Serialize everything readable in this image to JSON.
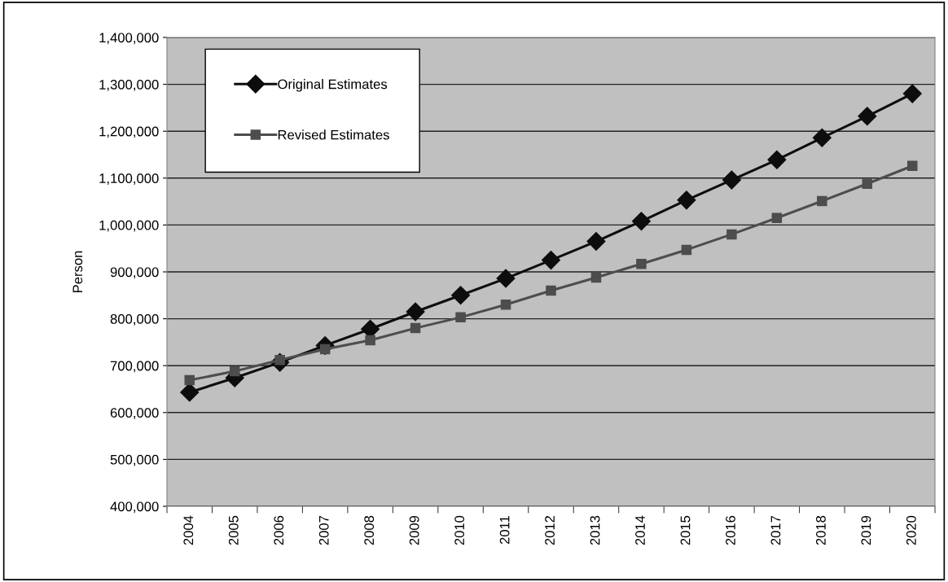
{
  "chart_data": {
    "type": "line",
    "ylabel": "Person",
    "categories": [
      "2004",
      "2005",
      "2006",
      "2007",
      "2008",
      "2009",
      "2010",
      "2011",
      "2012",
      "2013",
      "2014",
      "2015",
      "2016",
      "2017",
      "2018",
      "2019",
      "2020"
    ],
    "series": [
      {
        "name": "Original Estimates",
        "color": "#0d0d0d",
        "marker": "diamond",
        "values": [
          643000,
          674000,
          707000,
          743000,
          778000,
          815000,
          850000,
          886000,
          925000,
          965000,
          1008000,
          1053000,
          1096000,
          1139000,
          1186000,
          1232000,
          1280000
        ]
      },
      {
        "name": "Revised Estimates",
        "color": "#4d4d4d",
        "marker": "square",
        "values": [
          669000,
          688000,
          712000,
          735000,
          754000,
          780000,
          803000,
          830000,
          860000,
          888000,
          917000,
          947000,
          980000,
          1015000,
          1051000,
          1088000,
          1126000
        ]
      }
    ],
    "ylim": [
      400000,
      1400000
    ],
    "yticks": [
      {
        "value": 400000,
        "label": "400,000"
      },
      {
        "value": 500000,
        "label": "500,000"
      },
      {
        "value": 600000,
        "label": "600,000"
      },
      {
        "value": 700000,
        "label": "700,000"
      },
      {
        "value": 800000,
        "label": "800,000"
      },
      {
        "value": 900000,
        "label": "900,000"
      },
      {
        "value": 1000000,
        "label": "1,000,000"
      },
      {
        "value": 1100000,
        "label": "1,100,000"
      },
      {
        "value": 1200000,
        "label": "1,200,000"
      },
      {
        "value": 1300000,
        "label": "1,300,000"
      },
      {
        "value": 1400000,
        "label": "1,400,000"
      }
    ],
    "grid": "y",
    "legend": "top left",
    "line_style": "solid"
  }
}
